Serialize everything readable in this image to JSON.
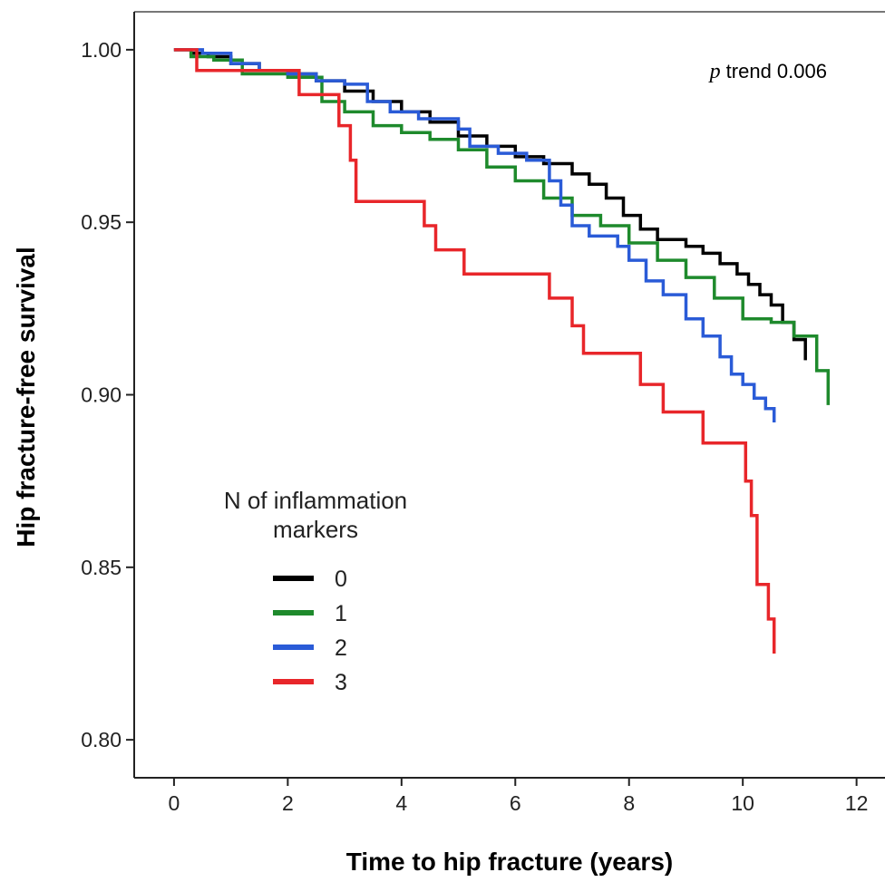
{
  "chart_data": {
    "type": "line",
    "subtype": "kaplan-meier step",
    "xlabel": "Time to hip fracture (years)",
    "ylabel": "Hip fracture-free survival",
    "xlim": [
      -0.7,
      12.5
    ],
    "ylim": [
      0.789,
      1.011
    ],
    "x_ticks": [
      0,
      2,
      4,
      6,
      8,
      10,
      12
    ],
    "x_tick_labels": [
      "0",
      "2",
      "4",
      "6",
      "8",
      "10",
      "12"
    ],
    "y_ticks": [
      0.8,
      0.85,
      0.9,
      0.95,
      1.0
    ],
    "y_tick_labels": [
      "0.80",
      "0.85",
      "0.90",
      "0.95",
      "1.00"
    ],
    "grid": false,
    "annotation": {
      "p": "p",
      "rest": " trend 0.006"
    },
    "legend": {
      "title_line1": "N of inflammation",
      "title_line2": "markers",
      "placement": "center-left"
    },
    "series": [
      {
        "name": "0",
        "color": "#000000",
        "points": [
          [
            0,
            1.0
          ],
          [
            0.3,
            0.999
          ],
          [
            0.6,
            0.998
          ],
          [
            1.0,
            0.996
          ],
          [
            1.5,
            0.994
          ],
          [
            2.0,
            0.993
          ],
          [
            2.5,
            0.991
          ],
          [
            3.0,
            0.988
          ],
          [
            3.5,
            0.985
          ],
          [
            4.0,
            0.982
          ],
          [
            4.5,
            0.979
          ],
          [
            5.0,
            0.975
          ],
          [
            5.5,
            0.972
          ],
          [
            6.0,
            0.969
          ],
          [
            6.5,
            0.967
          ],
          [
            7.0,
            0.964
          ],
          [
            7.3,
            0.961
          ],
          [
            7.6,
            0.957
          ],
          [
            7.9,
            0.952
          ],
          [
            8.2,
            0.948
          ],
          [
            8.5,
            0.945
          ],
          [
            9.0,
            0.943
          ],
          [
            9.3,
            0.941
          ],
          [
            9.6,
            0.938
          ],
          [
            9.9,
            0.935
          ],
          [
            10.1,
            0.932
          ],
          [
            10.3,
            0.929
          ],
          [
            10.5,
            0.926
          ],
          [
            10.7,
            0.921
          ],
          [
            10.9,
            0.916
          ],
          [
            11.1,
            0.91
          ]
        ]
      },
      {
        "name": "1",
        "color": "#1e8a2c",
        "points": [
          [
            0,
            1.0
          ],
          [
            0.3,
            0.998
          ],
          [
            0.7,
            0.997
          ],
          [
            1.2,
            0.993
          ],
          [
            2.0,
            0.992
          ],
          [
            2.6,
            0.985
          ],
          [
            3.0,
            0.982
          ],
          [
            3.5,
            0.978
          ],
          [
            4.0,
            0.976
          ],
          [
            4.5,
            0.974
          ],
          [
            5.0,
            0.971
          ],
          [
            5.5,
            0.966
          ],
          [
            6.0,
            0.962
          ],
          [
            6.5,
            0.957
          ],
          [
            7.0,
            0.952
          ],
          [
            7.5,
            0.949
          ],
          [
            8.0,
            0.944
          ],
          [
            8.5,
            0.939
          ],
          [
            9.0,
            0.934
          ],
          [
            9.5,
            0.928
          ],
          [
            10.0,
            0.922
          ],
          [
            10.5,
            0.921
          ],
          [
            10.9,
            0.917
          ],
          [
            11.3,
            0.913
          ],
          [
            11.3,
            0.907
          ],
          [
            11.5,
            0.907
          ],
          [
            11.5,
            0.897
          ]
        ]
      },
      {
        "name": "2",
        "color": "#2a5bd7",
        "points": [
          [
            0,
            1.0
          ],
          [
            0.5,
            0.999
          ],
          [
            1.0,
            0.996
          ],
          [
            1.5,
            0.994
          ],
          [
            2.0,
            0.993
          ],
          [
            2.5,
            0.991
          ],
          [
            3.0,
            0.99
          ],
          [
            3.4,
            0.985
          ],
          [
            3.8,
            0.982
          ],
          [
            4.3,
            0.98
          ],
          [
            5.0,
            0.977
          ],
          [
            5.2,
            0.972
          ],
          [
            5.7,
            0.97
          ],
          [
            6.2,
            0.968
          ],
          [
            6.6,
            0.962
          ],
          [
            6.8,
            0.955
          ],
          [
            7.0,
            0.949
          ],
          [
            7.3,
            0.946
          ],
          [
            7.8,
            0.943
          ],
          [
            8.0,
            0.939
          ],
          [
            8.3,
            0.933
          ],
          [
            8.6,
            0.929
          ],
          [
            9.0,
            0.922
          ],
          [
            9.3,
            0.917
          ],
          [
            9.6,
            0.911
          ],
          [
            9.8,
            0.906
          ],
          [
            10.0,
            0.903
          ],
          [
            10.2,
            0.899
          ],
          [
            10.4,
            0.896
          ],
          [
            10.55,
            0.892
          ]
        ]
      },
      {
        "name": "3",
        "color": "#e8262a",
        "points": [
          [
            0,
            1.0
          ],
          [
            0.4,
            0.999
          ],
          [
            0.4,
            0.994
          ],
          [
            2.2,
            0.994
          ],
          [
            2.2,
            0.987
          ],
          [
            2.9,
            0.987
          ],
          [
            2.9,
            0.978
          ],
          [
            3.1,
            0.978
          ],
          [
            3.1,
            0.968
          ],
          [
            3.2,
            0.968
          ],
          [
            3.2,
            0.956
          ],
          [
            4.4,
            0.956
          ],
          [
            4.4,
            0.949
          ],
          [
            4.6,
            0.949
          ],
          [
            4.6,
            0.942
          ],
          [
            5.1,
            0.942
          ],
          [
            5.1,
            0.935
          ],
          [
            6.6,
            0.935
          ],
          [
            6.6,
            0.928
          ],
          [
            7.0,
            0.928
          ],
          [
            7.0,
            0.92
          ],
          [
            7.2,
            0.92
          ],
          [
            7.2,
            0.912
          ],
          [
            8.2,
            0.912
          ],
          [
            8.2,
            0.903
          ],
          [
            8.6,
            0.903
          ],
          [
            8.6,
            0.895
          ],
          [
            9.3,
            0.895
          ],
          [
            9.3,
            0.886
          ],
          [
            10.05,
            0.886
          ],
          [
            10.05,
            0.875
          ],
          [
            10.15,
            0.875
          ],
          [
            10.15,
            0.865
          ],
          [
            10.25,
            0.865
          ],
          [
            10.25,
            0.845
          ],
          [
            10.45,
            0.845
          ],
          [
            10.45,
            0.835
          ],
          [
            10.55,
            0.835
          ],
          [
            10.55,
            0.825
          ]
        ]
      }
    ]
  }
}
